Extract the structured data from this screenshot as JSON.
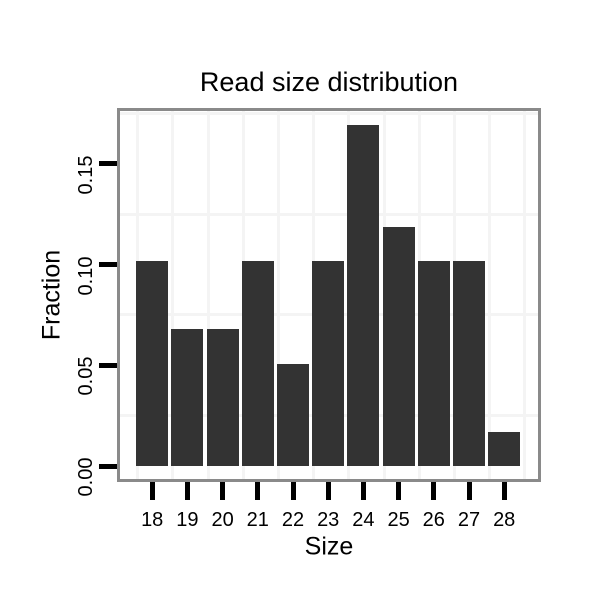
{
  "title": "Read size distribution",
  "colors": {
    "bar": "#333333",
    "panel_border": "#8a8a8a",
    "panel_background": "#ffffff",
    "grid_minor": "#f4f4f4",
    "tick": "#000000",
    "text": "#000000",
    "page_background": "#ffffff"
  },
  "chart_data": {
    "type": "bar",
    "title": "Read size distribution",
    "xlabel": "Size",
    "ylabel": "Fraction",
    "categories": [
      "18",
      "19",
      "20",
      "21",
      "22",
      "23",
      "24",
      "25",
      "26",
      "27",
      "28"
    ],
    "values": [
      0.1017,
      0.0678,
      0.0678,
      0.1017,
      0.0508,
      0.1017,
      0.1695,
      0.1186,
      0.1017,
      0.1017,
      0.0169
    ],
    "y_tick_labels": [
      "0.00",
      "0.05",
      "0.10",
      "0.15"
    ],
    "y_tick_values": [
      0.0,
      0.05,
      0.1,
      0.15
    ],
    "y_minor_gridline_values": [
      0.025,
      0.075,
      0.125,
      0.175
    ],
    "ylim": [
      -0.008,
      0.178
    ],
    "grid": "minor gridlines only, very light gray, vertical lines between categories",
    "legend_position": "none",
    "bar_color": "#333333"
  }
}
